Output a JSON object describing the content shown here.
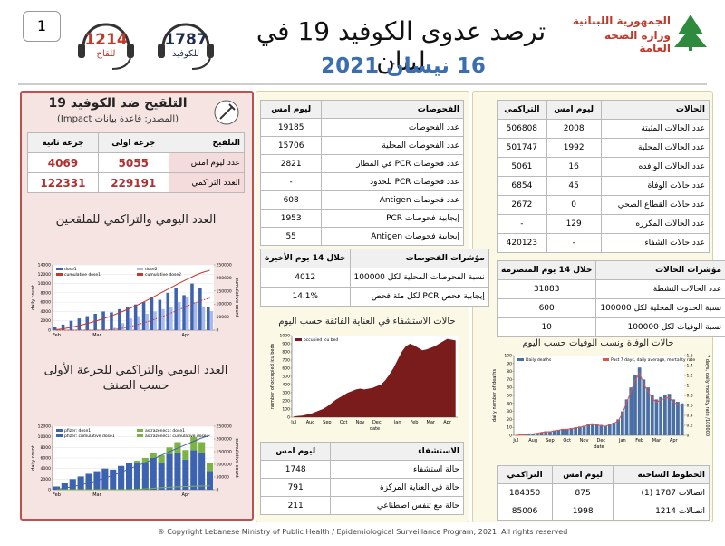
{
  "header": {
    "page_number": 1,
    "hotline_vaccine": {
      "number": 1214,
      "label": "للقاح"
    },
    "hotline_covid": {
      "number": 1787,
      "label": "للكوفيد"
    },
    "title": "ترصد عدوى الكوفيد 19 في لبنان",
    "date": "16 نيسان 2021",
    "ministry": [
      "الجمهورية اللبنانية",
      "وزارة الصحة العامة"
    ]
  },
  "vaccination": {
    "title": "التلقيح ضد الكوفيد 19",
    "source": "(المصدر: قاعدة بيانات Impact)",
    "table": {
      "header": [
        "التلقيح",
        "جرعة اولى",
        "جرعة ثانية"
      ],
      "rows": [
        [
          "عدد ليوم امس",
          5055,
          4069
        ],
        [
          "العدد التراكمي",
          229191,
          122331
        ]
      ]
    }
  },
  "cases": {
    "header": [
      "الحالات",
      "ليوم امس",
      "التراكمي"
    ],
    "rows": [
      [
        "عدد الحالات المثبتة",
        2008,
        506808
      ],
      [
        "عدد الحالات المحلية",
        1992,
        501747
      ],
      [
        "عدد الحالات الوافده",
        16,
        5061
      ],
      [
        "عدد حالات الوفاة",
        45,
        6854
      ],
      [
        "عدد حالات القطاع الصحي",
        0,
        2672
      ],
      [
        "عدد الحالات المكرره",
        129,
        "-"
      ],
      [
        "عدد حالات الشفاء",
        "-",
        420123
      ]
    ]
  },
  "case_indicators": {
    "header": [
      "مؤشرات الحالات",
      "خلال 14 يوم المنصرمة"
    ],
    "rows": [
      [
        "عدد الحالات النشطة",
        31883
      ],
      [
        "نسبة الحدوث المحلية لكل 100000",
        600
      ],
      [
        "نسبة الوفيات لكل 100000",
        10
      ]
    ]
  },
  "hotlines": {
    "header": [
      "الخطوط الساخنة",
      "ليوم امس",
      "التراكمي"
    ],
    "rows": [
      [
        "اتصالات 1787 (1)",
        875,
        184350
      ],
      [
        "اتصالات 1214",
        1998,
        85006
      ]
    ]
  },
  "tests": {
    "header": [
      "الفحوصات",
      "ليوم امس"
    ],
    "rows": [
      [
        "عدد الفحوصات",
        19185
      ],
      [
        "عدد الفحوصات المحلية",
        15706
      ],
      [
        "عدد فحوصات PCR في المطار",
        2821
      ],
      [
        "عدد فحوصات PCR للحدود",
        "-"
      ],
      [
        "عدد فحوصات Antigen",
        608
      ],
      [
        "إيجابية فحوصات PCR",
        1953
      ],
      [
        "إيجابية فحوصات Antigen",
        55
      ]
    ]
  },
  "test_indicators": {
    "header": [
      "مؤشرات الفحوصات",
      "خلال 14 يوم الأخيرة"
    ],
    "rows": [
      [
        "نسبة الفحوصات المحلية لكل 100000",
        4012
      ],
      [
        "إيجابية فحص PCR لكل مئة فحص",
        "14.1%"
      ]
    ]
  },
  "hospitalization": {
    "header": [
      "الاستشفاء",
      "ليوم امس"
    ],
    "rows": [
      [
        "حالة استشفاء",
        1748
      ],
      [
        "حالة في العناية المركزة",
        791
      ],
      [
        "حالة مع تنفس اصطناعي",
        211
      ]
    ]
  },
  "footer": "® Copyright Lebanese Ministry of Public Health / Epidemiological Surveillance Program, 2021. All rights reserved",
  "chart_data": [
    {
      "type": "combo",
      "title": "العدد اليومي والتراكمي للملقحين",
      "categories": [
        "Feb",
        null,
        null,
        null,
        null,
        "Mar",
        null,
        null,
        null,
        null,
        null,
        null,
        null,
        null,
        null,
        null,
        "Apr",
        null,
        null,
        null
      ],
      "series": [
        {
          "name": "dose1",
          "type": "bar",
          "color": "#3d63b0",
          "values": [
            600,
            1200,
            2000,
            2500,
            3000,
            3500,
            4000,
            3800,
            4500,
            5000,
            5500,
            6000,
            7000,
            6500,
            8000,
            9000,
            7500,
            10000,
            9000,
            5055
          ]
        },
        {
          "name": "dose2",
          "type": "bar",
          "color": "#aab8ea",
          "values": [
            0,
            0,
            0,
            0,
            0,
            0,
            0,
            500,
            1500,
            2500,
            3000,
            3500,
            4000,
            4500,
            5000,
            6000,
            7000,
            6000,
            5000,
            4069
          ]
        },
        {
          "name": "cumulative dose1",
          "type": "line",
          "axis": "y2",
          "color": "#c0392b",
          "values": [
            2000,
            6000,
            12000,
            19000,
            27000,
            36000,
            46000,
            57000,
            69000,
            82000,
            96000,
            111000,
            127000,
            144000,
            160000,
            177000,
            192000,
            207000,
            220000,
            229191
          ]
        },
        {
          "name": "cumulative dose2",
          "type": "line",
          "axis": "y2",
          "color": "#c0392b",
          "dash": true,
          "values": [
            0,
            0,
            0,
            0,
            0,
            0,
            0,
            2000,
            6000,
            13000,
            21000,
            30000,
            40000,
            51000,
            63000,
            76000,
            90000,
            103000,
            114000,
            122331
          ]
        }
      ],
      "ylim": [
        0,
        14000
      ],
      "yticks": [
        0,
        2000,
        4000,
        6000,
        8000,
        10000,
        12000,
        14000
      ],
      "y2lim": [
        0,
        250000
      ],
      "y2ticks": [
        0,
        50000,
        100000,
        150000,
        200000,
        250000
      ],
      "ylabel": "daily count",
      "y2label": "cumulative count",
      "grid": true,
      "stacked": false,
      "legend": "top"
    },
    {
      "type": "combo",
      "title": "العدد اليومي والتراكمي للجرعة الأولى حسب الصنف",
      "categories": [
        "Feb",
        null,
        null,
        null,
        null,
        "Mar",
        null,
        null,
        null,
        null,
        null,
        null,
        null,
        null,
        null,
        null,
        "Apr",
        null,
        null,
        null
      ],
      "series": [
        {
          "name": "pfizer: dose1",
          "type": "bar",
          "color": "#3d63b0",
          "values": [
            600,
            1200,
            2000,
            2500,
            3000,
            3500,
            4000,
            3800,
            4500,
            5000,
            5000,
            5200,
            6000,
            5000,
            6800,
            7000,
            5700,
            7500,
            7000,
            3555
          ]
        },
        {
          "name": "astrazeneca: dose1",
          "type": "bar",
          "color": "#7cb342",
          "values": [
            0,
            0,
            0,
            0,
            0,
            0,
            0,
            0,
            0,
            0,
            500,
            800,
            1000,
            1500,
            1200,
            2000,
            1800,
            2500,
            2000,
            1500
          ]
        },
        {
          "name": "pfizer: cumulative dose1",
          "type": "line",
          "axis": "y2",
          "color": "#3d63b0",
          "values": [
            2000,
            6000,
            12000,
            19000,
            27000,
            36000,
            46000,
            57000,
            69000,
            82000,
            94000,
            107000,
            121000,
            136000,
            150000,
            164000,
            177000,
            191000,
            204000,
            214000
          ]
        },
        {
          "name": "astrazeneca: cumulative dose1",
          "type": "line",
          "axis": "y2",
          "color": "#7cb342",
          "values": [
            0,
            0,
            0,
            0,
            0,
            0,
            0,
            0,
            0,
            0,
            1500,
            3500,
            5500,
            8000,
            9500,
            11000,
            12500,
            13500,
            14500,
            15191
          ]
        }
      ],
      "ylim": [
        0,
        12000
      ],
      "yticks": [
        0,
        2000,
        4000,
        6000,
        8000,
        10000,
        12000
      ],
      "y2lim": [
        0,
        250000
      ],
      "y2ticks": [
        0,
        50000,
        100000,
        150000,
        200000,
        250000
      ],
      "ylabel": "daily count",
      "y2label": "cumulative count",
      "grid": true,
      "stacked": true,
      "legend": "top"
    },
    {
      "type": "combo",
      "title": "حالات الاستشفاء في العناية الفائقة حسب اليوم",
      "categories": [
        "Jul",
        null,
        null,
        null,
        "Aug",
        null,
        null,
        null,
        "Sep",
        null,
        null,
        null,
        "Oct",
        null,
        null,
        null,
        "Nov",
        null,
        null,
        null,
        "Dec",
        null,
        null,
        null,
        null,
        "Jan",
        null,
        null,
        null,
        "Feb",
        null,
        null,
        null,
        "Mar",
        null,
        null,
        null,
        "Apr",
        null,
        null
      ],
      "series": [
        {
          "name": "occupied icu bed",
          "type": "area",
          "color": "#7a1c1c",
          "values": [
            10,
            15,
            20,
            30,
            40,
            60,
            80,
            100,
            130,
            170,
            210,
            240,
            270,
            300,
            320,
            340,
            350,
            340,
            350,
            360,
            380,
            400,
            450,
            520,
            600,
            700,
            800,
            870,
            900,
            880,
            850,
            820,
            830,
            850,
            870,
            900,
            930,
            960,
            950,
            940
          ]
        }
      ],
      "ylim": [
        0,
        1000
      ],
      "yticks": [
        0,
        100,
        200,
        300,
        400,
        500,
        600,
        700,
        800,
        900,
        1000
      ],
      "ylabel": "number of occupied icu beds",
      "xlabel": "date",
      "grid": false,
      "stacked": false,
      "legend": "top"
    },
    {
      "type": "combo",
      "title": "حالات الوفاة ونسب الوفيات حسب اليوم",
      "categories": [
        "Jul",
        null,
        null,
        null,
        "Aug",
        null,
        null,
        null,
        "Sep",
        null,
        null,
        null,
        "Oct",
        null,
        null,
        null,
        "Nov",
        null,
        null,
        null,
        "Dec",
        null,
        null,
        null,
        null,
        "Jan",
        null,
        null,
        null,
        "Feb",
        null,
        null,
        null,
        "Mar",
        null,
        null,
        null,
        "Apr",
        null,
        null
      ],
      "series": [
        {
          "name": "Daily deaths",
          "type": "bar",
          "color": "#4a6fa5",
          "values": [
            0,
            1,
            1,
            2,
            2,
            3,
            4,
            5,
            5,
            6,
            7,
            8,
            8,
            9,
            10,
            11,
            12,
            14,
            15,
            14,
            13,
            12,
            14,
            16,
            20,
            30,
            45,
            60,
            75,
            85,
            70,
            60,
            50,
            45,
            48,
            50,
            52,
            45,
            42,
            40
          ]
        },
        {
          "name": "Past 7 days, daily average, mortality rate",
          "type": "line",
          "axis": "y2",
          "color": "#e0524a",
          "values": [
            0,
            0.01,
            0.01,
            0.03,
            0.03,
            0.04,
            0.06,
            0.07,
            0.07,
            0.09,
            0.1,
            0.12,
            0.12,
            0.13,
            0.15,
            0.16,
            0.18,
            0.21,
            0.22,
            0.21,
            0.19,
            0.18,
            0.21,
            0.24,
            0.29,
            0.44,
            0.66,
            0.88,
            1.1,
            1.25,
            1.03,
            0.88,
            0.74,
            0.66,
            0.71,
            0.74,
            0.76,
            0.66,
            0.62,
            0.59
          ]
        }
      ],
      "ylim": [
        0,
        100
      ],
      "yticks": [
        0,
        10,
        20,
        30,
        40,
        50,
        60,
        70,
        80,
        90,
        100
      ],
      "y2lim": [
        0,
        1.6
      ],
      "y2ticks": [
        0,
        0.2,
        0.4,
        0.6,
        0.8,
        1,
        1.2,
        1.4,
        1.6
      ],
      "ylabel": "daily number of deaths",
      "y2label": "7 days, daily mortality rate /100000",
      "xlabel": "date",
      "grid": false,
      "stacked": false,
      "legend": "top"
    }
  ]
}
